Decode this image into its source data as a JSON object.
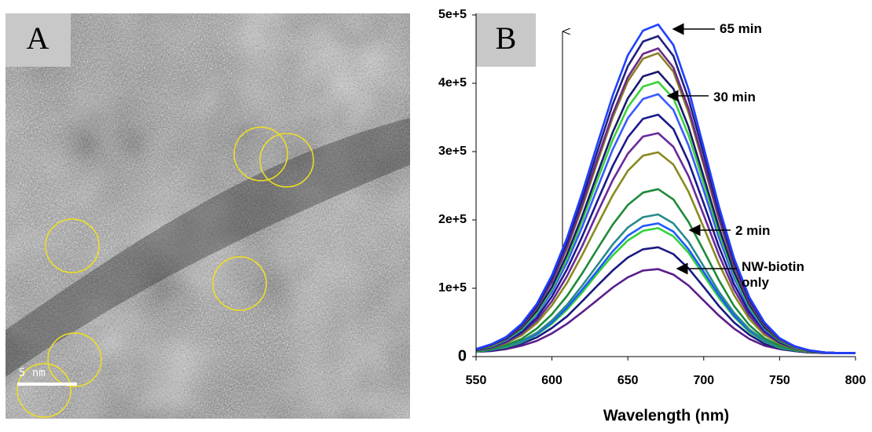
{
  "image_panel": {
    "label": "A",
    "scale_bar": "5 nm"
  },
  "chart_data": {
    "type": "line",
    "panel_label": "B",
    "x_label": "Wavelength (nm)",
    "x": [
      550,
      560,
      570,
      580,
      590,
      600,
      610,
      620,
      630,
      640,
      650,
      660,
      670,
      680,
      690,
      700,
      710,
      720,
      730,
      740,
      750,
      760,
      770,
      780,
      790,
      800
    ],
    "xlim": [
      550,
      800
    ],
    "xticks": [
      550,
      600,
      650,
      700,
      750,
      800
    ],
    "ylim": [
      0,
      500000
    ],
    "yticks": [
      0,
      {
        "value": 100000,
        "label": "1e+5"
      },
      {
        "value": 200000,
        "label": "2e+5"
      },
      {
        "value": 300000,
        "label": "3e+5"
      },
      {
        "value": 400000,
        "label": "4e+5"
      },
      {
        "value": 500000,
        "label": "5e+5"
      }
    ],
    "annotations": [
      "65 min",
      "30 min",
      "2 min",
      "NW-biotin only"
    ],
    "series": [
      {
        "color": "#5b1e8c",
        "values": [
          7000,
          8000,
          11000,
          16000,
          23000,
          34000,
          48000,
          65000,
          83000,
          101000,
          116000,
          126000,
          128000,
          120000,
          104000,
          82000,
          60000,
          41000,
          26000,
          16000,
          11000,
          8000,
          6000,
          5000,
          5000,
          5000
        ]
      },
      {
        "color": "#1a1a80",
        "values": [
          7000,
          9000,
          13000,
          19000,
          28000,
          42000,
          59000,
          81000,
          104000,
          126000,
          145000,
          157000,
          160000,
          150000,
          129000,
          102000,
          74000,
          50000,
          32000,
          19000,
          12000,
          8000,
          6000,
          6000,
          5000,
          5000
        ]
      },
      {
        "color": "#33d13a",
        "values": [
          7000,
          10000,
          14000,
          21000,
          32000,
          48000,
          69000,
          94000,
          122000,
          148000,
          170000,
          184000,
          188000,
          176000,
          152000,
          119000,
          86000,
          58000,
          36000,
          22000,
          13000,
          9000,
          7000,
          6000,
          5000,
          5000
        ]
      },
      {
        "color": "#1e5aff",
        "values": [
          8000,
          10000,
          15000,
          22000,
          33000,
          50000,
          72000,
          98000,
          126000,
          154000,
          177000,
          191000,
          195000,
          183000,
          157000,
          124000,
          90000,
          60000,
          38000,
          23000,
          14000,
          9000,
          7000,
          6000,
          5000,
          5000
        ]
      },
      {
        "color": "#2a8a8a",
        "values": [
          8000,
          10000,
          15000,
          23000,
          35000,
          53000,
          76000,
          104000,
          134000,
          164000,
          189000,
          204000,
          208000,
          195000,
          168000,
          132000,
          95000,
          64000,
          40000,
          24000,
          14000,
          9000,
          7000,
          6000,
          5000,
          5000
        ]
      },
      {
        "color": "#1f8a3a",
        "values": [
          8000,
          11000,
          17000,
          26000,
          41000,
          62000,
          89000,
          122000,
          158000,
          193000,
          222000,
          240000,
          245000,
          230000,
          197000,
          155000,
          112000,
          74000,
          46000,
          27000,
          16000,
          10000,
          7000,
          6000,
          5000,
          5000
        ]
      },
      {
        "color": "#8a8a1f",
        "values": [
          9000,
          13000,
          20000,
          31000,
          49000,
          75000,
          108000,
          149000,
          193000,
          236000,
          272000,
          294000,
          299000,
          281000,
          241000,
          189000,
          136000,
          90000,
          55000,
          32000,
          19000,
          11000,
          7000,
          6000,
          5000,
          5000
        ]
      },
      {
        "color": "#6a2a9a",
        "values": [
          9000,
          13000,
          21000,
          34000,
          53000,
          81000,
          118000,
          162000,
          211000,
          258000,
          297000,
          322000,
          327000,
          307000,
          264000,
          207000,
          149000,
          98000,
          60000,
          35000,
          20000,
          12000,
          8000,
          6000,
          5000,
          5000
        ]
      },
      {
        "color": "#1a1a8a",
        "values": [
          10000,
          14000,
          23000,
          36000,
          57000,
          88000,
          128000,
          176000,
          228000,
          279000,
          321000,
          348000,
          354000,
          333000,
          285000,
          224000,
          161000,
          106000,
          65000,
          38000,
          21000,
          12000,
          8000,
          6000,
          5000,
          5000
        ]
      },
      {
        "color": "#3a5aff",
        "values": [
          10000,
          15000,
          24000,
          39000,
          62000,
          95000,
          138000,
          190000,
          247000,
          303000,
          349000,
          377000,
          384000,
          361000,
          309000,
          243000,
          174000,
          115000,
          70000,
          40000,
          23000,
          13000,
          8000,
          6000,
          5000,
          5000
        ]
      },
      {
        "color": "#3ad23a",
        "values": [
          10000,
          15000,
          25000,
          40000,
          64000,
          99000,
          144000,
          199000,
          259000,
          317000,
          365000,
          395000,
          402000,
          378000,
          324000,
          254000,
          182000,
          120000,
          73000,
          42000,
          23000,
          13000,
          8000,
          6000,
          5000,
          5000
        ]
      },
      {
        "color": "#1a1a70",
        "values": [
          10000,
          16000,
          26000,
          42000,
          67000,
          102000,
          150000,
          206000,
          268000,
          328000,
          378000,
          410000,
          417000,
          392000,
          336000,
          263000,
          189000,
          124000,
          76000,
          43000,
          24000,
          14000,
          8000,
          6000,
          5000,
          5000
        ]
      },
      {
        "color": "#8a8020",
        "values": [
          11000,
          16000,
          27000,
          44000,
          71000,
          109000,
          159000,
          219000,
          285000,
          350000,
          403000,
          436000,
          444000,
          417000,
          357000,
          280000,
          201000,
          132000,
          80000,
          46000,
          25000,
          14000,
          9000,
          6000,
          5000,
          5000
        ]
      },
      {
        "color": "#6a2a8a",
        "values": [
          11000,
          17000,
          27000,
          45000,
          72000,
          110000,
          161000,
          223000,
          290000,
          355000,
          409000,
          443000,
          451000,
          423000,
          363000,
          284000,
          204000,
          134000,
          81000,
          47000,
          26000,
          14000,
          9000,
          6000,
          5000,
          5000
        ]
      },
      {
        "color": "#202080",
        "values": [
          11000,
          17000,
          28000,
          46000,
          74000,
          115000,
          168000,
          231000,
          301000,
          369000,
          425000,
          461000,
          469000,
          440000,
          377000,
          296000,
          212000,
          139000,
          84000,
          48000,
          26000,
          15000,
          9000,
          6000,
          5000,
          5000
        ]
      },
      {
        "color": "#2040ff",
        "values": [
          11000,
          18000,
          29000,
          48000,
          77000,
          119000,
          174000,
          240000,
          312000,
          382000,
          441000,
          477000,
          486000,
          456000,
          391000,
          306000,
          220000,
          144000,
          87000,
          50000,
          27000,
          15000,
          9000,
          6000,
          5000,
          5000
        ]
      }
    ]
  }
}
